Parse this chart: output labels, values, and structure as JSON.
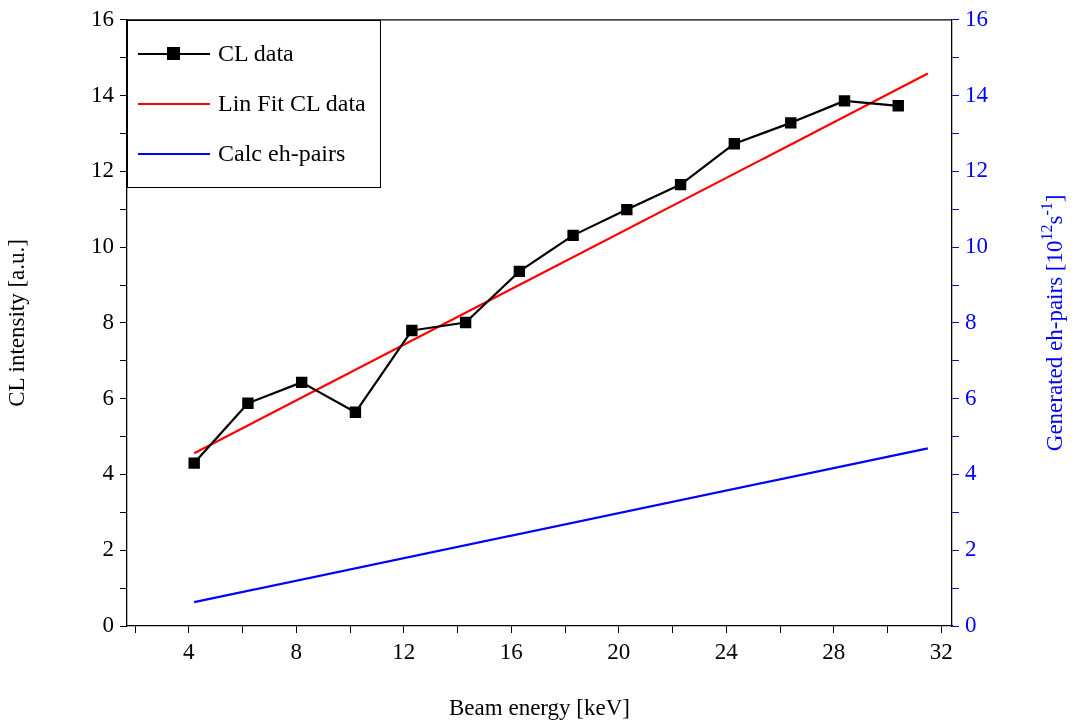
{
  "chart_data": {
    "type": "line",
    "xlabel": "Beam energy [keV]",
    "ylabel": "CL intensity [a.u.]",
    "y2label": "Generated eh-pairs [10$^{12}$s$^{-1}$]",
    "xlim": [
      1.7,
      32.4
    ],
    "xticks": [
      {
        "value": 2,
        "label": null
      },
      4,
      {
        "value": 6,
        "label": null
      },
      8,
      {
        "value": 10,
        "label": null
      },
      12,
      {
        "value": 14,
        "label": null
      },
      16,
      {
        "value": 18,
        "label": null
      },
      20,
      {
        "value": 22,
        "label": null
      },
      24,
      {
        "value": 26,
        "label": null
      },
      28,
      {
        "value": 30,
        "label": null
      },
      32
    ],
    "ylim": [
      0,
      16
    ],
    "yticks": [
      0,
      {
        "value": 1,
        "label": null
      },
      2,
      {
        "value": 3,
        "label": null
      },
      4,
      {
        "value": 5,
        "label": null
      },
      6,
      {
        "value": 7,
        "label": null
      },
      8,
      {
        "value": 9,
        "label": null
      },
      10,
      {
        "value": 11,
        "label": null
      },
      12,
      {
        "value": 13,
        "label": null
      },
      14,
      {
        "value": 15,
        "label": null
      },
      16
    ],
    "y2lim": [
      0,
      16
    ],
    "y2ticks": [
      0,
      {
        "value": 1,
        "label": null
      },
      2,
      {
        "value": 3,
        "label": null
      },
      4,
      {
        "value": 5,
        "label": null
      },
      6,
      {
        "value": 7,
        "label": null
      },
      8,
      {
        "value": 9,
        "label": null
      },
      10,
      {
        "value": 11,
        "label": null
      },
      12,
      {
        "value": 13,
        "label": null
      },
      14,
      {
        "value": 15,
        "label": null
      },
      16
    ],
    "grid": false,
    "legend": "top left",
    "series": [
      {
        "name": "CL data",
        "color": "#000000",
        "marker": "square",
        "x": [
          4.2,
          6.2,
          8.2,
          10.2,
          12.3,
          14.3,
          16.3,
          18.3,
          20.3,
          22.3,
          24.3,
          26.4,
          28.4,
          30.4
        ],
        "values": [
          4.3,
          5.88,
          6.43,
          5.64,
          7.8,
          8.01,
          9.36,
          10.31,
          10.99,
          11.65,
          12.73,
          13.28,
          13.86,
          13.73
        ]
      },
      {
        "name": "Lin Fit CL data",
        "color": "#ff0000",
        "marker": "none",
        "x": [
          4.2,
          31.5
        ],
        "values": [
          4.56,
          14.58
        ]
      },
      {
        "name": "Calc eh-pairs",
        "color": "#0000ff",
        "marker": "none",
        "axis": "y2",
        "x": [
          4.2,
          31.5
        ],
        "values": [
          0.63,
          4.69
        ]
      }
    ]
  }
}
